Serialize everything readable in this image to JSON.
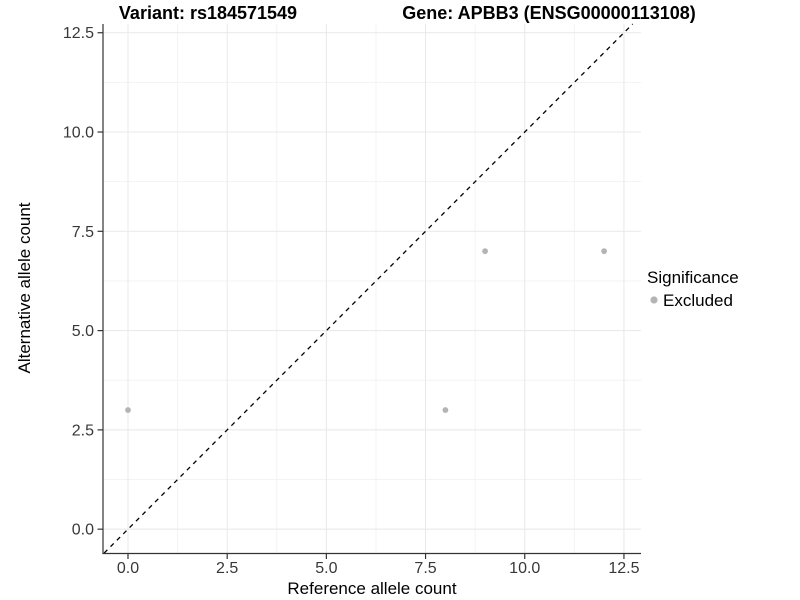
{
  "chart_data": {
    "type": "scatter",
    "titles": {
      "left": "Variant: rs184571549",
      "right": "Gene: APBB3 (ENSG00000113108)"
    },
    "xlabel": "Reference allele count",
    "ylabel": "Alternative allele count",
    "xlim": [
      -0.63,
      12.93
    ],
    "ylim": [
      -0.6,
      12.72
    ],
    "x_ticks": [
      0.0,
      2.5,
      5.0,
      7.5,
      10.0,
      12.5
    ],
    "x_tick_labels": [
      "0.0",
      "2.5",
      "5.0",
      "7.5",
      "10.0",
      "12.5"
    ],
    "y_ticks": [
      0.0,
      2.5,
      5.0,
      7.5,
      10.0,
      12.5
    ],
    "y_tick_labels": [
      "0.0",
      "2.5",
      "5.0",
      "7.5",
      "10.0",
      "12.5"
    ],
    "minor_ticks": [
      1.25,
      3.75,
      6.25,
      8.75,
      11.25
    ],
    "grid": {
      "major": true,
      "minor": true,
      "major_color": "#e8e8e8",
      "minor_color": "#f3f3f3"
    },
    "series": [
      {
        "name": "Excluded",
        "color": "#b4b4b4",
        "points": [
          [
            0,
            3
          ],
          [
            8,
            3
          ],
          [
            9,
            7
          ],
          [
            12,
            7
          ]
        ]
      }
    ],
    "reference_line": {
      "kind": "identity",
      "style": "dashed",
      "color": "#000000"
    },
    "legend": {
      "position": "right",
      "title": "Significance",
      "items": [
        {
          "label": "Excluded",
          "color": "#b4b4b4"
        }
      ]
    },
    "colors": {
      "axis_line": "#333333",
      "tick_mark": "#333333",
      "point": "#b4b4b4",
      "background": "#ffffff"
    }
  }
}
